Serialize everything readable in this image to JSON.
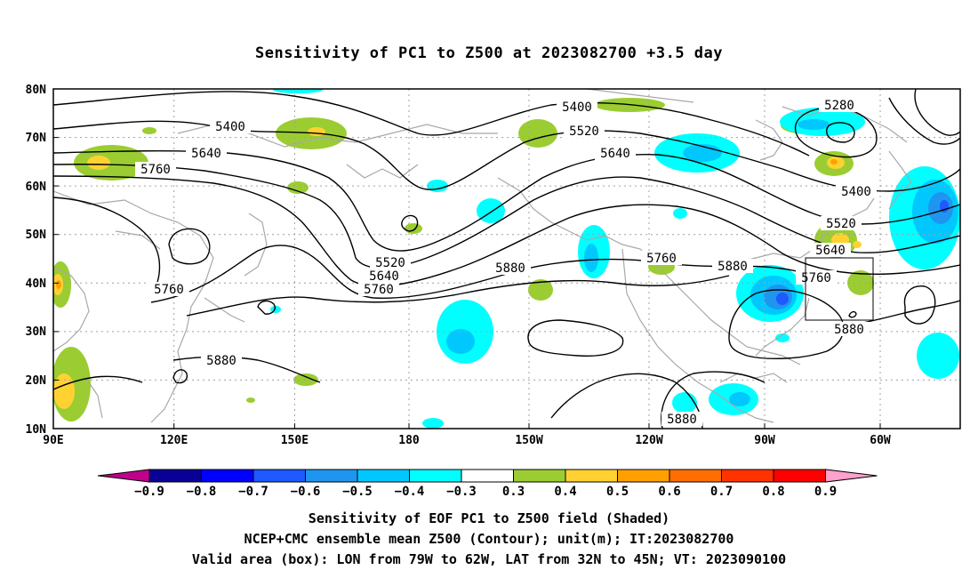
{
  "title": "Sensitivity of PC1 to Z500 at 2023082700 +3.5 day",
  "map": {
    "projection": "cylindrical equidistant",
    "lon_range": [
      "90E",
      "40W"
    ],
    "lat_range": [
      "10N",
      "80N"
    ],
    "lat_labels": [
      "80N",
      "70N",
      "60N",
      "50N",
      "40N",
      "30N",
      "20N",
      "10N"
    ],
    "lon_labels": [
      "90E",
      "120E",
      "150E",
      "180",
      "150W",
      "120W",
      "90W",
      "60W"
    ],
    "gridlines": "dotted",
    "coastlines": "gray"
  },
  "contour_labels": [
    "5400",
    "5400",
    "5280",
    "5520",
    "5640",
    "5760",
    "5640",
    "5400",
    "5520",
    "5640",
    "5520",
    "5640",
    "5760",
    "5760",
    "5760",
    "5880",
    "5880",
    "5760",
    "5880",
    "5880",
    "5880"
  ],
  "colorbar": {
    "labels": [
      "−0.9",
      "−0.8",
      "−0.7",
      "−0.6",
      "−0.5",
      "−0.4",
      "−0.3",
      "0.3",
      "0.4",
      "0.5",
      "0.6",
      "0.7",
      "0.8",
      "0.9"
    ],
    "colors": [
      "#c0008c",
      "#0a0096",
      "#0000ff",
      "#1e5aff",
      "#1e96f0",
      "#00c8ff",
      "#00ffff",
      "#ffffff",
      "#9bcd32",
      "#ffd232",
      "#ffa000",
      "#ff6e00",
      "#ff3200",
      "#ff0000",
      "#ffa0cd"
    ]
  },
  "valid_box": {
    "lon_from": "79W",
    "lon_to": "62W",
    "lat_from": "32N",
    "lat_to": "45N"
  },
  "captions": [
    "Sensitivity of EOF PC1 to Z500 field (Shaded)",
    "NCEP+CMC ensemble mean Z500 (Contour); unit(m); IT:2023082700",
    "Valid area (box): LON from 79W to 62W, LAT from 32N to 45N; VT: 2023090100"
  ]
}
